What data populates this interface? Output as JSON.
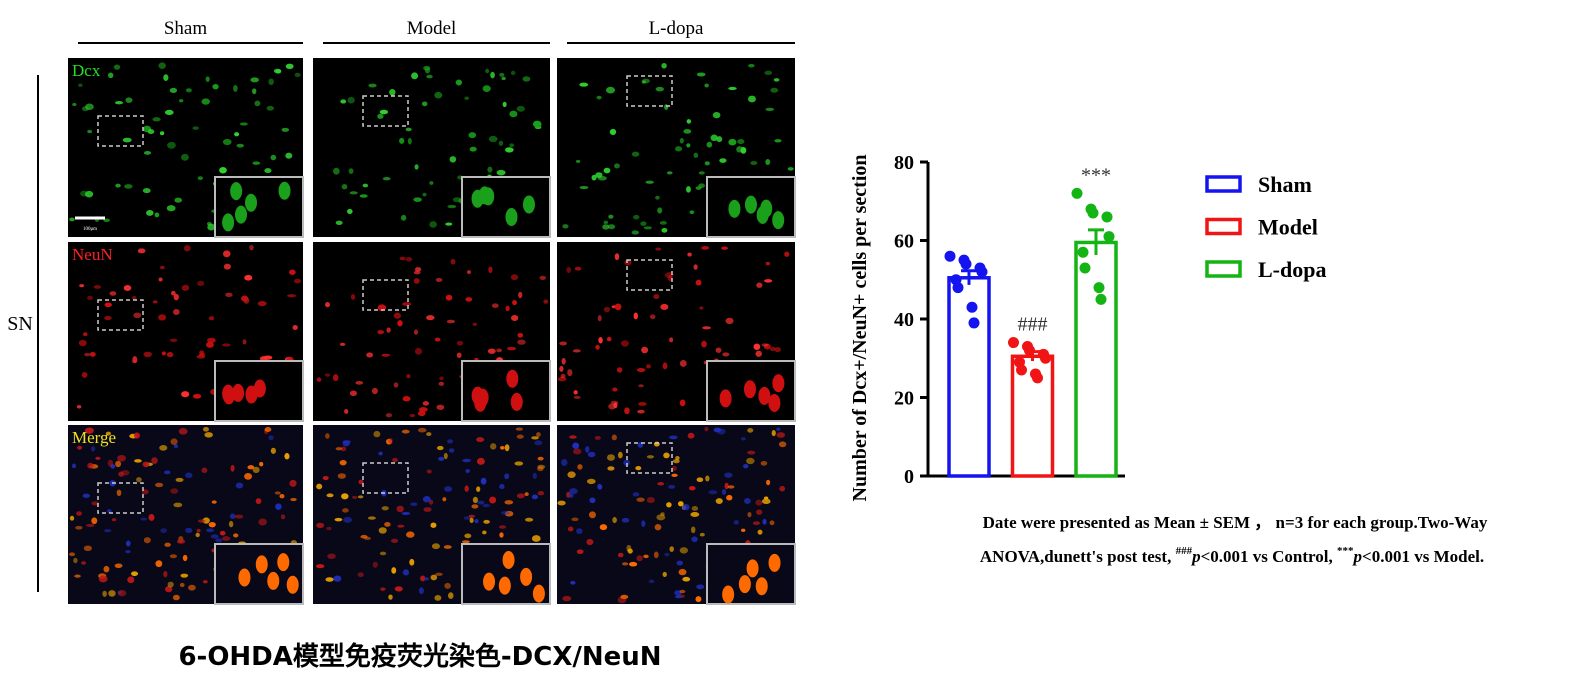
{
  "panels": {
    "columns": [
      "Sham",
      "Model",
      "L-dopa"
    ],
    "rows": [
      "Dcx",
      "NeuN",
      "Merge"
    ],
    "section": "SN",
    "scale_bar": "100μm"
  },
  "caption": "6-OHDA模型免疫荧光染色-DCX/NeuN",
  "chart_data": {
    "type": "bar",
    "y_label": "Number of Dcx+/NeuN+ cells per section",
    "categories": [
      "Sham",
      "Model",
      "L-dopa"
    ],
    "colors": [
      "#1414f0",
      "#f01414",
      "#14b414"
    ],
    "values": [
      50.5,
      30.5,
      59.5
    ],
    "errors": [
      1.8,
      1.2,
      3.2
    ],
    "points": [
      [
        56,
        55,
        54,
        53,
        52,
        50,
        48,
        43,
        39
      ],
      [
        34,
        33,
        32,
        31,
        30,
        29,
        27,
        26,
        25
      ],
      [
        72,
        68,
        67,
        66,
        61,
        57,
        53,
        48,
        45
      ]
    ],
    "annotations": [
      {
        "category": "Model",
        "text": "###"
      },
      {
        "category": "L-dopa",
        "text": "***"
      }
    ],
    "ylim": [
      0,
      80
    ],
    "yticks": [
      0,
      20,
      40,
      60,
      80
    ],
    "legend": "right",
    "note": [
      "Date were presented as Mean ± SEM ， n=3 for each group.Two-Way",
      "ANOVA,dunett's post test, ",
      "###",
      "p",
      "<0.001 vs Control, ",
      "***",
      "p",
      "<0.001 vs Model."
    ]
  }
}
